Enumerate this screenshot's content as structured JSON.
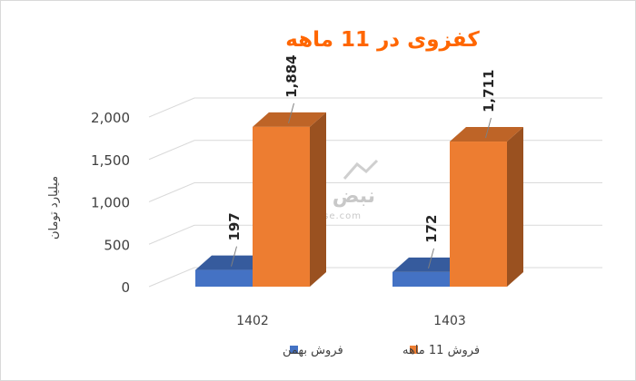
{
  "chart_data": {
    "type": "bar",
    "title": "کفزوی در 11 ماهه",
    "ylabel": "میلیارد تومان",
    "xlabel": "",
    "categories": [
      "1402",
      "1403"
    ],
    "ylim": [
      0,
      2000
    ],
    "yticks": [
      0,
      500,
      1000,
      1500,
      2000
    ],
    "ytick_labels": [
      "0",
      "500",
      "1,000",
      "1,500",
      "2,000"
    ],
    "grid": true,
    "legend_position": "bottom",
    "series": [
      {
        "name": "فروش بهمن",
        "values": [
          197,
          172
        ],
        "labels": [
          "197",
          "172"
        ],
        "color": "#4472c4"
      },
      {
        "name": "فروش 11 ماهه",
        "values": [
          1884,
          1711
        ],
        "labels": [
          "1,884",
          "1,711"
        ],
        "color": "#ed7d31"
      }
    ]
  },
  "watermark": {
    "logo_text": "نبض بورس",
    "site_text": "nabzebourse.com"
  }
}
